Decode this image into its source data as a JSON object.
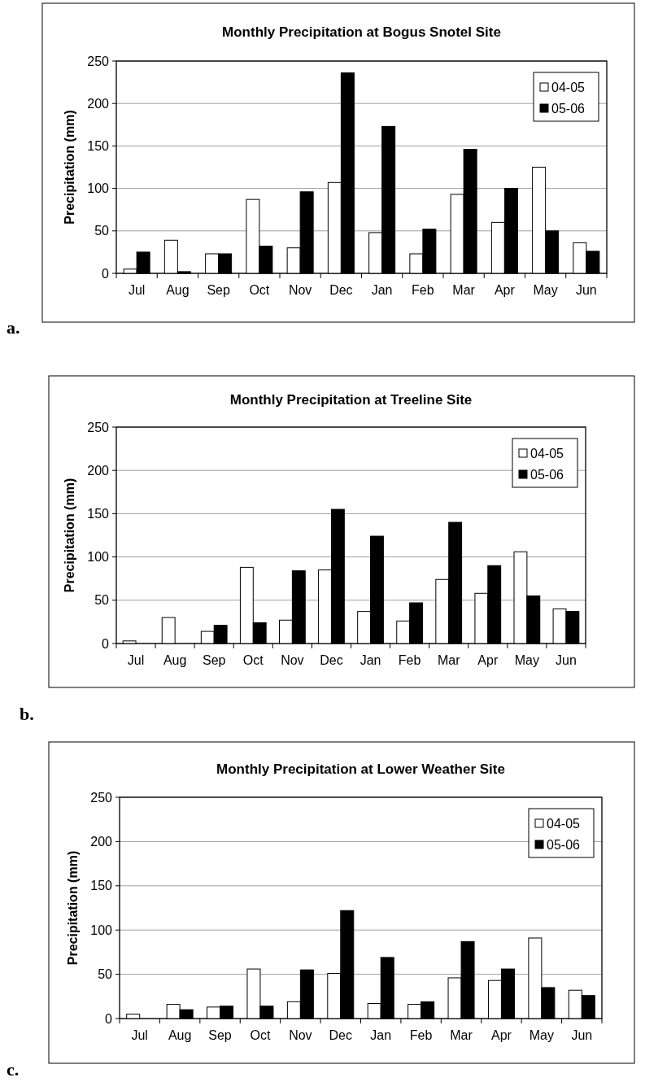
{
  "chart_data": [
    {
      "type": "bar",
      "title": "Monthly Precipitation at Bogus Snotel Site",
      "ylabel": "Precipitation (mm)",
      "categories": [
        "Jul",
        "Aug",
        "Sep",
        "Oct",
        "Nov",
        "Dec",
        "Jan",
        "Feb",
        "Mar",
        "Apr",
        "May",
        "Jun"
      ],
      "series": [
        {
          "name": "04-05",
          "color": "#ffffff",
          "values": [
            5,
            39,
            23,
            87,
            30,
            107,
            48,
            23,
            93,
            60,
            125,
            36
          ]
        },
        {
          "name": "05-06",
          "color": "#000000",
          "values": [
            25,
            2,
            23,
            32,
            96,
            236,
            173,
            52,
            146,
            100,
            50,
            26
          ]
        }
      ],
      "ylim": [
        0,
        250
      ],
      "yticks": [
        0,
        50,
        100,
        150,
        200,
        250
      ],
      "grid": "y",
      "legend": "top right",
      "annotations": [
        "a."
      ]
    },
    {
      "type": "bar",
      "title": "Monthly Precipitation at Treeline Site",
      "ylabel": "Precipitation (mm)",
      "categories": [
        "Jul",
        "Aug",
        "Sep",
        "Oct",
        "Nov",
        "Dec",
        "Jan",
        "Feb",
        "Mar",
        "Apr",
        "May",
        "Jun"
      ],
      "series": [
        {
          "name": "04-05",
          "color": "#ffffff",
          "values": [
            3,
            30,
            14,
            88,
            27,
            85,
            37,
            26,
            74,
            58,
            106,
            40
          ]
        },
        {
          "name": "05-06",
          "color": "#000000",
          "values": [
            0,
            0,
            21,
            24,
            84,
            155,
            124,
            47,
            140,
            90,
            55,
            37
          ]
        }
      ],
      "ylim": [
        0,
        250
      ],
      "yticks": [
        0,
        50,
        100,
        150,
        200,
        250
      ],
      "grid": "y",
      "legend": "top right",
      "annotations": [
        "b."
      ]
    },
    {
      "type": "bar",
      "title": "Monthly Precipitation at Lower Weather Site",
      "ylabel": "Precipitation (mm)",
      "categories": [
        "Jul",
        "Aug",
        "Sep",
        "Oct",
        "Nov",
        "Dec",
        "Jan",
        "Feb",
        "Mar",
        "Apr",
        "May",
        "Jun"
      ],
      "series": [
        {
          "name": "04-05",
          "color": "#ffffff",
          "values": [
            5,
            16,
            13,
            56,
            19,
            51,
            17,
            16,
            46,
            43,
            91,
            32
          ]
        },
        {
          "name": "05-06",
          "color": "#000000",
          "values": [
            0,
            10,
            14,
            14,
            55,
            122,
            69,
            19,
            87,
            56,
            35,
            26
          ]
        }
      ],
      "ylim": [
        0,
        250
      ],
      "yticks": [
        0,
        50,
        100,
        150,
        200,
        250
      ],
      "grid": "y",
      "legend": "top right",
      "annotations": [
        "c."
      ]
    }
  ]
}
